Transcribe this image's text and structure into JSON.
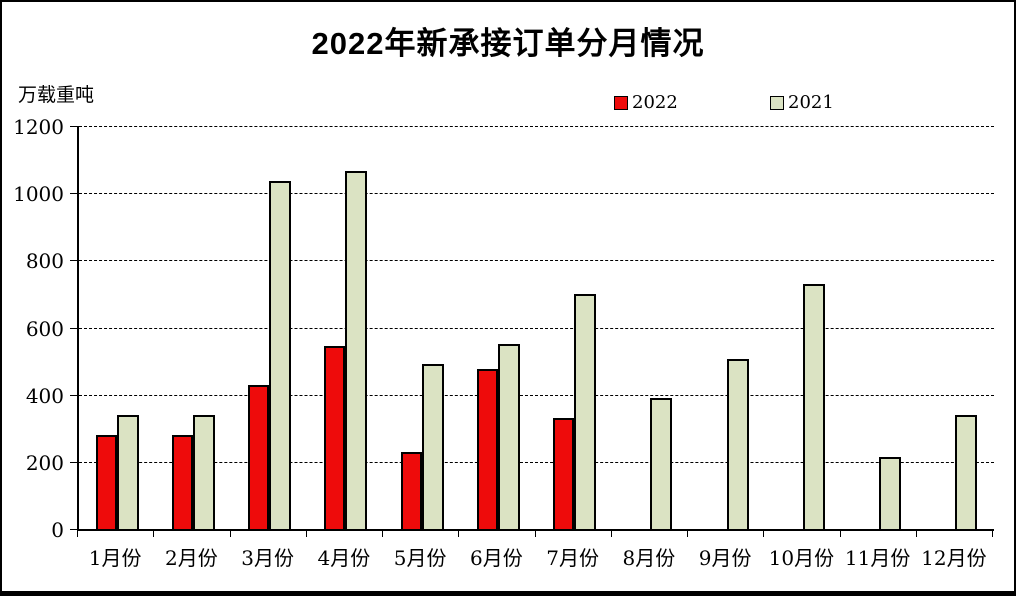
{
  "title": "2022年新承接订单分月情况",
  "y_unit_label": "万载重吨",
  "legend": [
    {
      "label": "2022",
      "color": "#ee0b0b"
    },
    {
      "label": "2021",
      "color": "#dbe3c3"
    }
  ],
  "chart_data": {
    "type": "bar",
    "title": "2022年新承接订单分月情况",
    "ylabel": "万载重吨",
    "categories": [
      "1月份",
      "2月份",
      "3月份",
      "4月份",
      "5月份",
      "6月份",
      "7月份",
      "8月份",
      "9月份",
      "10月份",
      "11月份",
      "12月份"
    ],
    "series": [
      {
        "name": "2022",
        "color": "#ee0b0b",
        "values": [
          280,
          280,
          430,
          545,
          230,
          475,
          330,
          null,
          null,
          null,
          null,
          null
        ]
      },
      {
        "name": "2021",
        "color": "#dbe3c3",
        "values": [
          340,
          340,
          1035,
          1065,
          490,
          550,
          700,
          390,
          505,
          730,
          215,
          340
        ]
      }
    ],
    "ylim": [
      0,
      1200
    ],
    "yticks": [
      0,
      200,
      400,
      600,
      800,
      1000,
      1200
    ],
    "grid": "horizontal-dashed",
    "legend_position": "top",
    "bar_border_color": "#000000",
    "background_color": "#ffffff"
  }
}
